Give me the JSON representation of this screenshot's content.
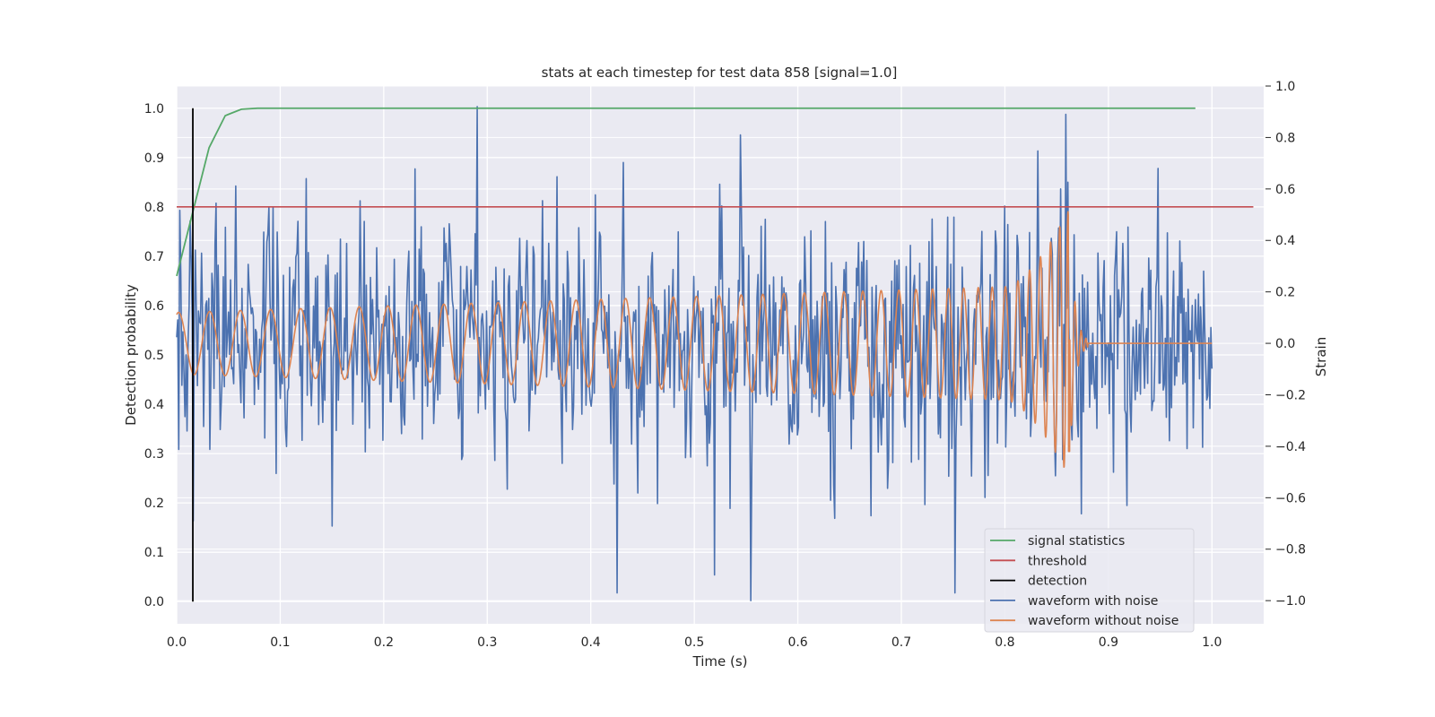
{
  "chart_data": {
    "type": "line",
    "title": "stats at each timestep for test data 858 [signal=1.0]",
    "xlabel": "Time (s)",
    "ylabel": "Detection probability",
    "y2label": "Strain",
    "xlim": [
      0.0,
      1.05
    ],
    "ylim": [
      -0.045,
      1.045
    ],
    "y2lim": [
      -1.09,
      1.0
    ],
    "xticks": [
      "0.0",
      "0.1",
      "0.2",
      "0.3",
      "0.4",
      "0.5",
      "0.6",
      "0.7",
      "0.8",
      "0.9",
      "1.0"
    ],
    "yticks": [
      "0.0",
      "0.1",
      "0.2",
      "0.3",
      "0.4",
      "0.5",
      "0.6",
      "0.7",
      "0.8",
      "0.9",
      "1.0"
    ],
    "y2ticks": [
      "−1.0",
      "−0.8",
      "−0.6",
      "−0.4",
      "−0.2",
      "0.0",
      "0.2",
      "0.4",
      "0.6",
      "0.8",
      "1.0"
    ],
    "grid": true,
    "legend_position": "lower-right",
    "colors": {
      "background": "#eaeaf2",
      "grid": "#ffffff",
      "signal_statistics": "#55a868",
      "threshold": "#c44e52",
      "detection": "#000000",
      "waveform_with_noise": "#4c72b0",
      "waveform_without_noise": "#dd8452"
    },
    "series": [
      {
        "name": "signal statistics",
        "axis": "left",
        "x": [
          0.0,
          0.0156,
          0.0313,
          0.0469,
          0.0625,
          0.0781,
          0.1,
          0.2,
          0.3,
          0.4,
          0.5,
          0.6,
          0.7,
          0.8,
          0.9,
          0.984
        ],
        "y": [
          0.66,
          0.79,
          0.92,
          0.985,
          0.998,
          1.0,
          1.0,
          1.0,
          1.0,
          1.0,
          1.0,
          1.0,
          1.0,
          1.0,
          1.0,
          1.0
        ]
      },
      {
        "name": "threshold",
        "axis": "left",
        "x": [
          0.0,
          1.04
        ],
        "y": [
          0.8,
          0.8
        ]
      },
      {
        "name": "detection",
        "axis": "left",
        "x": [
          0.0156,
          0.0156
        ],
        "y": [
          0.0,
          1.0
        ]
      },
      {
        "name": "waveform with noise",
        "axis": "right",
        "x_start": 0.0,
        "x_end": 1.0,
        "n_points": 1000,
        "approx_std": 0.22,
        "y_range": [
          -1.0,
          0.93
        ],
        "peaks": [
          {
            "x": 0.29,
            "y": 0.92
          },
          {
            "x": 0.555,
            "y": -1.0
          },
          {
            "x": 0.425,
            "y": -0.97
          },
          {
            "x": 0.752,
            "y": -0.97
          },
          {
            "x": 0.859,
            "y": 0.89
          },
          {
            "x": 0.52,
            "y": -0.9
          },
          {
            "x": 0.545,
            "y": 0.81
          },
          {
            "x": 0.15,
            "y": -0.71
          },
          {
            "x": 0.636,
            "y": -0.68
          },
          {
            "x": 0.948,
            "y": 0.68
          },
          {
            "x": 0.918,
            "y": -0.63
          },
          {
            "x": 0.125,
            "y": 0.64
          },
          {
            "x": 0.016,
            "y": -0.69
          }
        ]
      },
      {
        "name": "waveform without noise",
        "axis": "right",
        "x_start": 0.0,
        "x_end": 1.0,
        "amplitude_start": 0.12,
        "amplitude_at_0.8": 0.22,
        "amplitude_peak": 0.52,
        "peak_time": 0.862,
        "minimum": -0.42,
        "frequency_start_hz": 33,
        "merger_time": 0.862,
        "ringdown_end": 0.88,
        "post_merger_value": 0.0
      }
    ]
  }
}
